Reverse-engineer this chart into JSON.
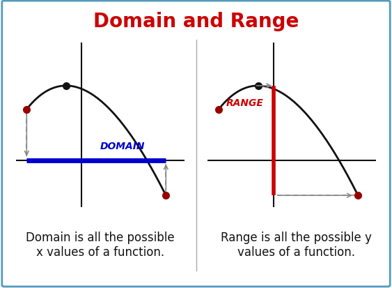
{
  "title": "Domain and Range",
  "title_color": "#cc0000",
  "title_fontsize": 20,
  "bg_color": "#ffffff",
  "panel_bg_color": "#c5d8ea",
  "border_color": "#5599bb",
  "left_caption": "Domain is all the possible\nx values of a function.",
  "right_caption": "Range is all the possible y\nvalues of a function.",
  "caption_fontsize": 12,
  "domain_label": "DOMAIN",
  "range_label": "RANGE",
  "domain_color": "#0000cc",
  "range_color": "#cc0000",
  "label_fontsize": 10,
  "curve_color": "#111111",
  "dot_color": "#990000",
  "axis_color": "#111111",
  "arrow_color": "#888888",
  "divider_color": "#aaaaaa"
}
